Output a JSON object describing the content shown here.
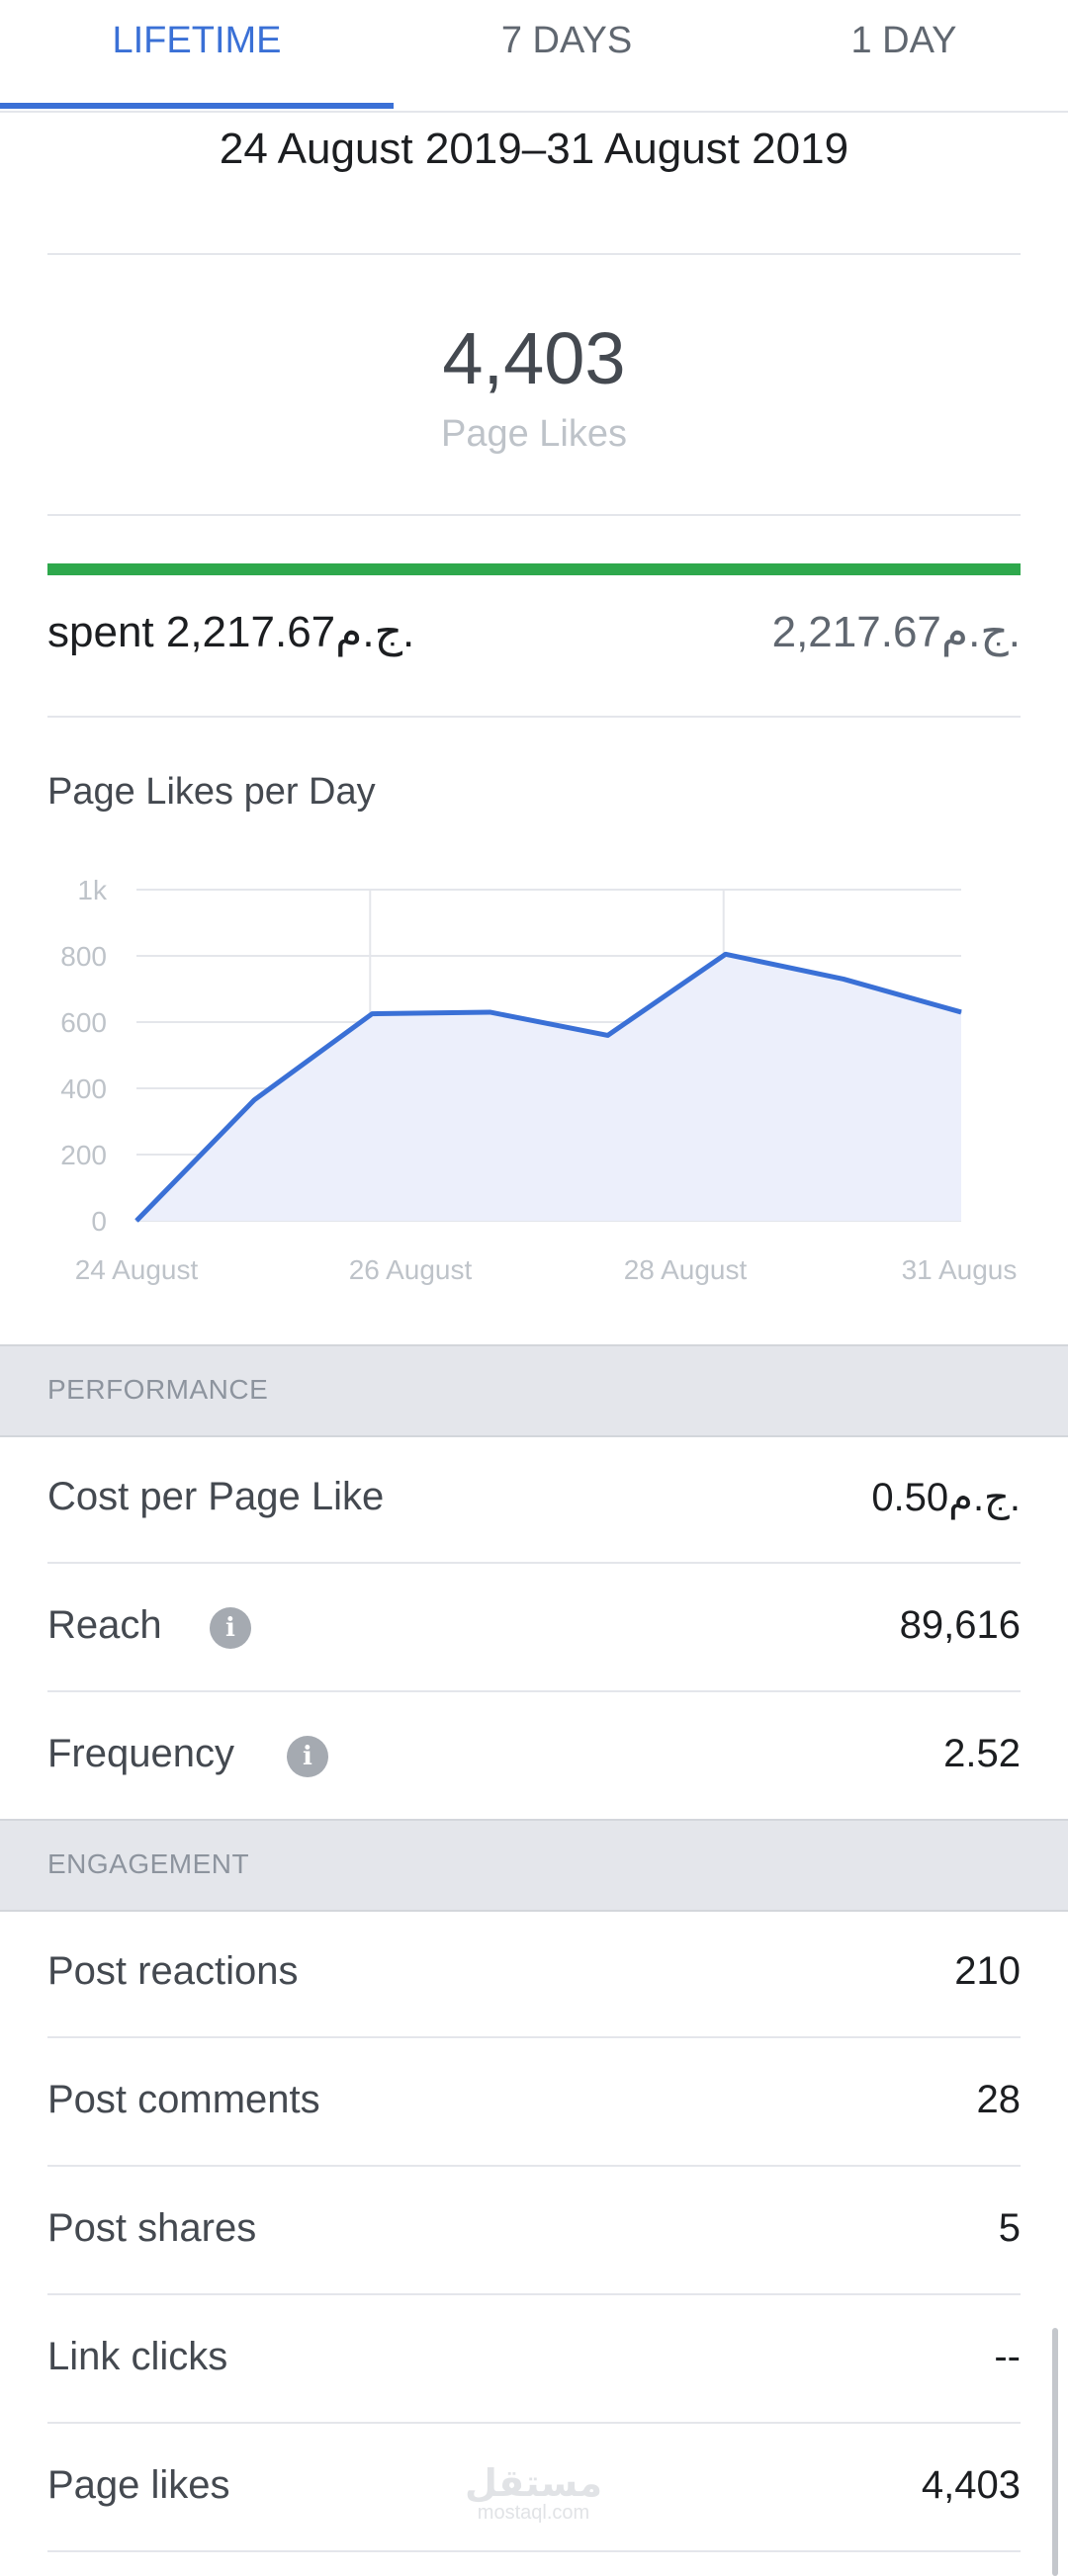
{
  "tabs": [
    {
      "label": "LIFETIME",
      "active": true
    },
    {
      "label": "7 DAYS",
      "active": false
    },
    {
      "label": "1 DAY",
      "active": false
    }
  ],
  "date_range": "24 August 2019–31 August 2019",
  "summary": {
    "value": "4,403",
    "label": "Page Likes"
  },
  "budget": {
    "spent_label": "spent 2,217.67ج.م.",
    "total": "2,217.67ج.م.",
    "progress_fraction": 1.0,
    "progress_color": "#2ea84c"
  },
  "chart_title": "Page Likes per Day",
  "chart_data": {
    "type": "area",
    "title": "Page Likes per Day",
    "x": [
      "24 August",
      "25 August",
      "26 August",
      "27 August",
      "28 August",
      "29 August",
      "30 August",
      "31 August"
    ],
    "tick_labels": [
      "24 August",
      "26 August",
      "28 August",
      "31 Augus"
    ],
    "y_tick_labels": [
      "0",
      "200",
      "400",
      "600",
      "800",
      "1k"
    ],
    "ylim": [
      0,
      1000
    ],
    "series": [
      {
        "values": [
          0,
          365,
          625,
          630,
          560,
          805,
          730,
          630
        ],
        "color": "#3a70d6",
        "fill": "#eceffb"
      }
    ],
    "grid": true
  },
  "sections": [
    {
      "header": "PERFORMANCE",
      "rows": [
        {
          "label": "Cost per Page Like",
          "value": "0.50ج.م.",
          "info": false
        },
        {
          "label": "Reach",
          "value": "89,616",
          "info": true
        },
        {
          "label": "Frequency",
          "value": "2.52",
          "info": true
        }
      ]
    },
    {
      "header": "ENGAGEMENT",
      "rows": [
        {
          "label": "Post reactions",
          "value": "210",
          "info": false
        },
        {
          "label": "Post comments",
          "value": "28",
          "info": false
        },
        {
          "label": "Post shares",
          "value": "5",
          "info": false
        },
        {
          "label": "Link clicks",
          "value": "--",
          "info": false
        },
        {
          "label": "Page likes",
          "value": "4,403",
          "info": false
        }
      ]
    }
  ],
  "info_icon": "info-icon",
  "watermark": {
    "main": "مستقل",
    "sub": "mostaql.com"
  }
}
